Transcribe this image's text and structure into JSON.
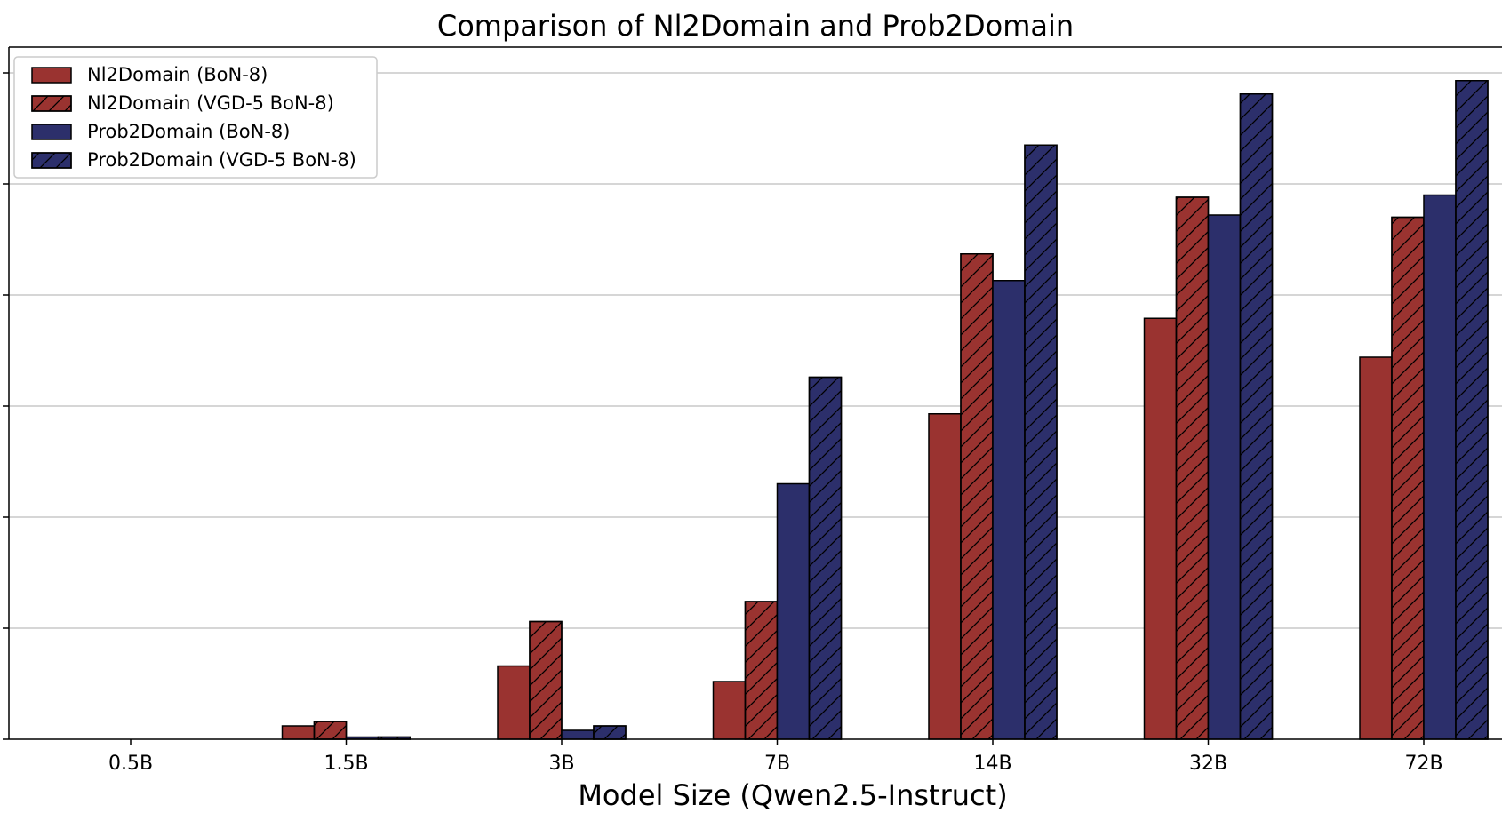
{
  "chart_data": {
    "type": "bar",
    "title": "Comparison of Nl2Domain and Prob2Domain",
    "xlabel": "Model Size (Qwen2.5-Instruct)",
    "ylabel": "",
    "categories": [
      "0.5B",
      "1.5B",
      "3B",
      "7B",
      "14B",
      "32B",
      "72B"
    ],
    "ylim": [
      0,
      6
    ],
    "grid": "horizontal",
    "legend": "top-left",
    "series": [
      {
        "name": "Nl2Domain (BoN-8)",
        "color": "#9a3330",
        "hatch": false,
        "values": [
          0.0,
          0.12,
          0.66,
          0.52,
          2.93,
          3.79,
          3.44
        ]
      },
      {
        "name": "Nl2Domain (VGD-5 BoN-8)",
        "color": "#9a3330",
        "hatch": true,
        "values": [
          0.0,
          0.16,
          1.06,
          1.24,
          4.37,
          4.88,
          4.7
        ]
      },
      {
        "name": "Prob2Domain (BoN-8)",
        "color": "#2c2f6b",
        "hatch": false,
        "values": [
          0.0,
          0.02,
          0.08,
          2.3,
          4.13,
          4.72,
          4.9
        ]
      },
      {
        "name": "Prob2Domain (VGD-5 BoN-8)",
        "color": "#2c2f6b",
        "hatch": true,
        "values": [
          0.0,
          0.02,
          0.12,
          3.26,
          5.35,
          5.81,
          5.93
        ]
      }
    ]
  }
}
